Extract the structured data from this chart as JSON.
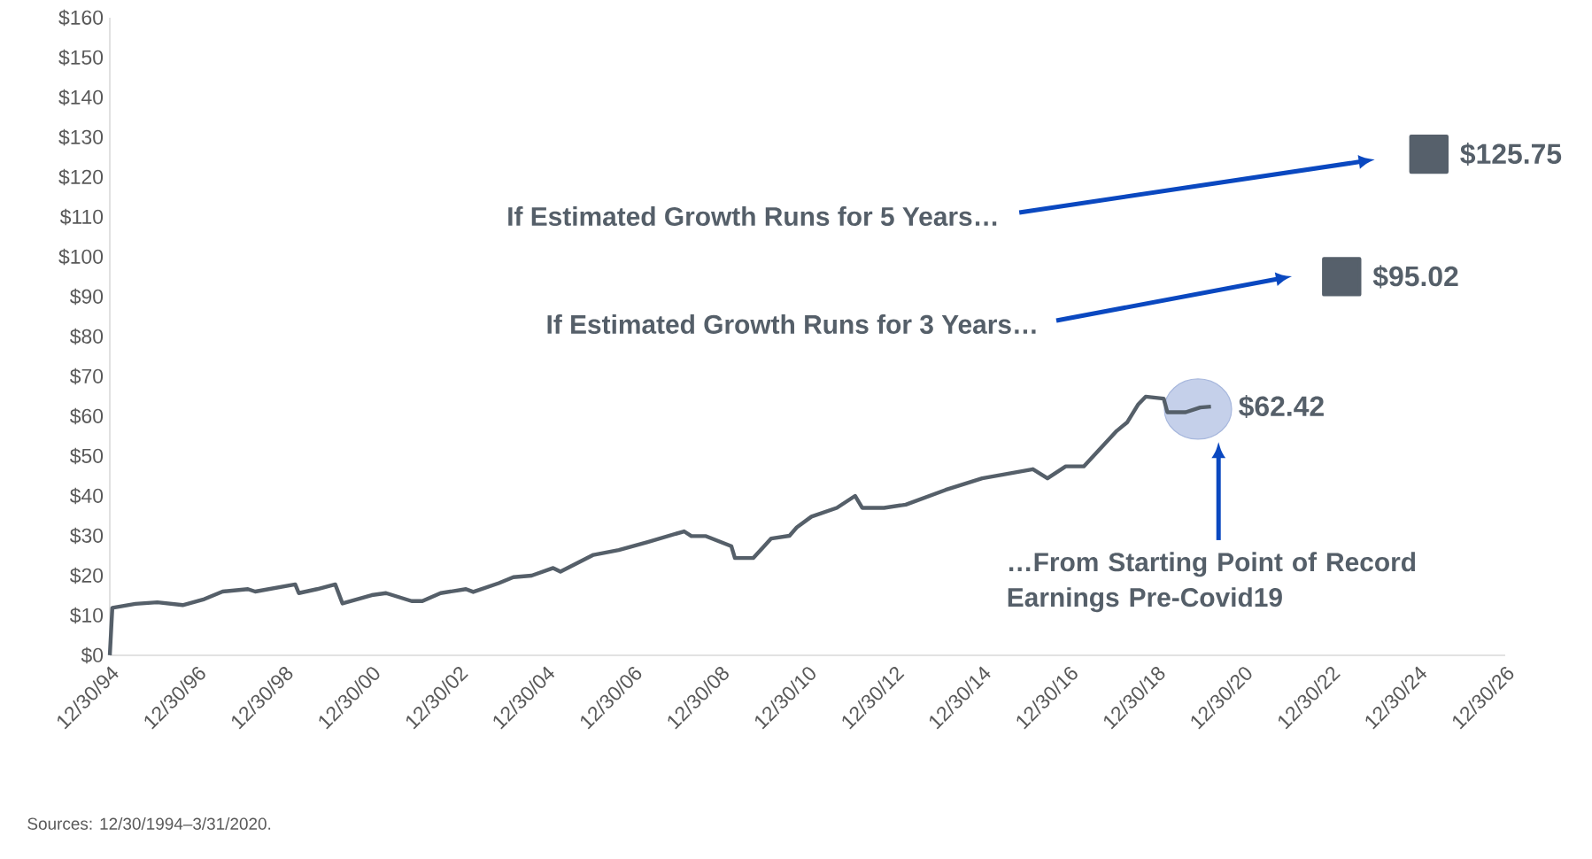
{
  "chart_data": {
    "type": "line",
    "series": [
      {
        "color": "#555f69",
        "x": [
          "1994-12-30",
          "1995-01-20",
          "1995-08",
          "1996-02",
          "1996-09",
          "1997-03",
          "1997-08",
          "1998-03",
          "1998-05",
          "1999-04",
          "1999-05",
          "1999-10",
          "2000-03",
          "2000-05",
          "2001-01",
          "2001-05",
          "2001-12",
          "2002-03",
          "2002-08",
          "2003-03",
          "2003-05",
          "2003-12",
          "2004-04",
          "2004-09",
          "2005-03",
          "2005-05",
          "2006-02",
          "2006-09",
          "2007-05",
          "2008-03",
          "2008-05",
          "2008-09",
          "2009-04",
          "2009-05",
          "2009-10",
          "2010-01",
          "2010-03",
          "2010-08",
          "2010-10",
          "2011-02",
          "2011-09",
          "2012-02",
          "2012-04",
          "2012-10",
          "2013-04",
          "2014-03",
          "2015-01",
          "2016-03",
          "2016-07",
          "2016-12",
          "2017-05",
          "2018-02",
          "2018-05",
          "2018-08",
          "2018-10",
          "2019-03",
          "2019-04",
          "2019-09",
          "2020-01",
          "2020-03-31"
        ],
        "values": [
          0,
          11.9,
          12.9,
          13.3,
          12.6,
          14.1,
          16,
          16.6,
          16,
          17.8,
          15.6,
          16.6,
          17.8,
          13,
          15.1,
          15.6,
          13.6,
          13.6,
          15.6,
          16.6,
          15.9,
          18.1,
          19.6,
          20,
          21.9,
          21,
          25.2,
          26.4,
          28.4,
          31.1,
          29.9,
          29.9,
          27.4,
          24.4,
          24.4,
          27.4,
          29.3,
          30,
          32.1,
          34.8,
          37,
          40,
          37,
          37,
          37.8,
          41.5,
          44.4,
          46.7,
          44.4,
          47.4,
          47.4,
          56.3,
          58.5,
          63,
          64.9,
          64.4,
          61,
          61,
          62.2,
          62.42
        ],
        "value_labels": [
          null,
          null,
          null,
          null,
          null,
          null,
          null,
          null,
          null,
          null,
          null,
          null,
          null,
          null,
          null,
          null,
          null,
          null,
          null,
          null,
          null,
          null,
          null,
          null,
          null,
          null,
          null,
          null,
          null,
          null,
          null,
          null,
          null,
          null,
          null,
          null,
          null,
          null,
          null,
          null,
          null,
          null,
          null,
          null,
          null,
          null,
          null,
          null,
          null,
          null,
          null,
          null,
          null,
          null,
          null,
          null,
          null,
          null,
          null,
          "$62.42"
        ]
      },
      {
        "type": "scatter",
        "color": "#56606b",
        "marker": "square",
        "x": [
          "2023-03-31",
          "2025-03-31"
        ],
        "values": [
          95.02,
          125.75
        ],
        "value_labels": [
          "$95.02",
          "$125.75"
        ]
      }
    ],
    "xlim": [
      "1994-12-30",
      "2026-12-30"
    ],
    "xticks": [
      {
        "value": "1994-12-30",
        "label": "12/30/94"
      },
      {
        "value": "1996-12-30",
        "label": "12/30/96"
      },
      {
        "value": "1998-12-30",
        "label": "12/30/98"
      },
      {
        "value": "2000-12-30",
        "label": "12/30/00"
      },
      {
        "value": "2002-12-30",
        "label": "12/30/02"
      },
      {
        "value": "2004-12-30",
        "label": "12/30/04"
      },
      {
        "value": "2006-12-30",
        "label": "12/30/06"
      },
      {
        "value": "2008-12-30",
        "label": "12/30/08"
      },
      {
        "value": "2010-12-30",
        "label": "12/30/10"
      },
      {
        "value": "2012-12-30",
        "label": "12/30/12"
      },
      {
        "value": "2014-12-30",
        "label": "12/30/14"
      },
      {
        "value": "2016-12-30",
        "label": "12/30/16"
      },
      {
        "value": "2018-12-30",
        "label": "12/30/18"
      },
      {
        "value": "2020-12-30",
        "label": "12/30/20"
      },
      {
        "value": "2022-12-30",
        "label": "12/30/22"
      },
      {
        "value": "2024-12-30",
        "label": "12/30/24"
      },
      {
        "value": "2026-12-30",
        "label": "12/30/26"
      }
    ],
    "ylim": [
      0,
      160
    ],
    "yticks": [
      {
        "value": 0,
        "label": "$0"
      },
      {
        "value": 10,
        "label": "$10"
      },
      {
        "value": 20,
        "label": "$20"
      },
      {
        "value": 30,
        "label": "$30"
      },
      {
        "value": 40,
        "label": "$40"
      },
      {
        "value": 50,
        "label": "$50"
      },
      {
        "value": 60,
        "label": "$60"
      },
      {
        "value": 70,
        "label": "$70"
      },
      {
        "value": 80,
        "label": "$80"
      },
      {
        "value": 90,
        "label": "$90"
      },
      {
        "value": 100,
        "label": "$100"
      },
      {
        "value": 110,
        "label": "$110"
      },
      {
        "value": 120,
        "label": "$120"
      },
      {
        "value": 130,
        "label": "$130"
      },
      {
        "value": 140,
        "label": "$140"
      },
      {
        "value": 150,
        "label": "$150"
      },
      {
        "value": 160,
        "label": "$160"
      }
    ],
    "annotations": [
      "If Estimated Growth Runs for 5 Years…",
      "If Estimated Growth Runs for 3 Years…",
      "…From Starting Point of Record Earnings Pre-Covid19",
      "Sources: 12/30/1994–3/31/2020."
    ]
  }
}
